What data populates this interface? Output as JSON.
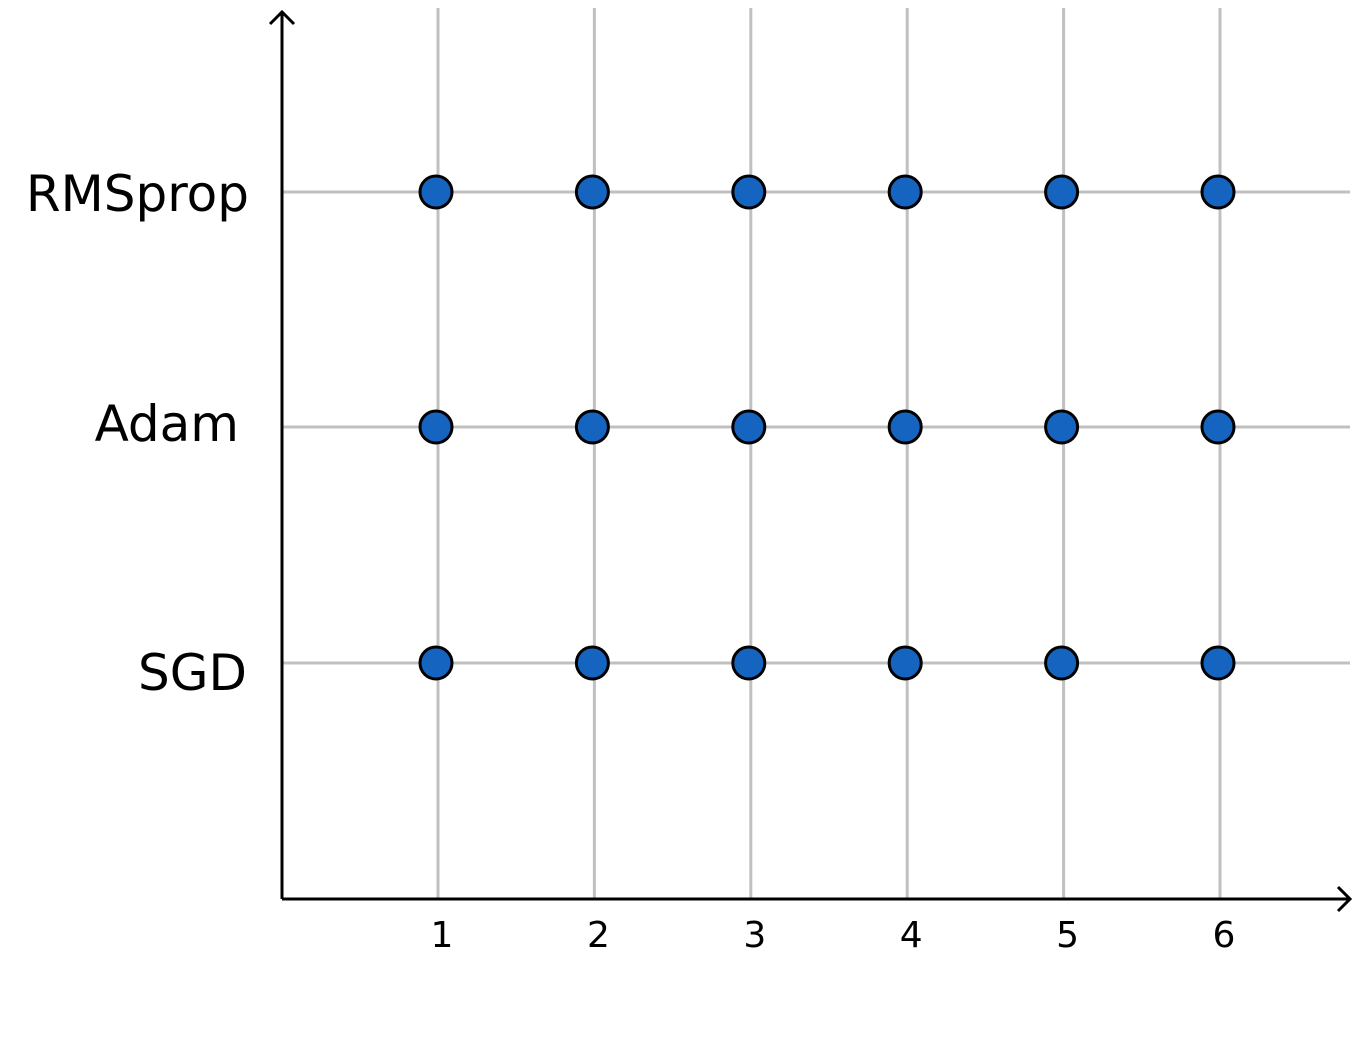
{
  "chart_data": {
    "type": "scatter",
    "title": "",
    "xlabel": "",
    "ylabel": "",
    "x_ticks": [
      "1",
      "2",
      "3",
      "4",
      "5",
      "6"
    ],
    "y_categories": [
      "SGD",
      "Adam",
      "RMSprop"
    ],
    "xlim": [
      0,
      6.75
    ],
    "grid": true,
    "marker_color": "#1565c0",
    "series": [
      {
        "points": [
          {
            "x": 1,
            "y": "SGD"
          },
          {
            "x": 2,
            "y": "SGD"
          },
          {
            "x": 3,
            "y": "SGD"
          },
          {
            "x": 4,
            "y": "SGD"
          },
          {
            "x": 5,
            "y": "SGD"
          },
          {
            "x": 6,
            "y": "SGD"
          },
          {
            "x": 1,
            "y": "Adam"
          },
          {
            "x": 2,
            "y": "Adam"
          },
          {
            "x": 3,
            "y": "Adam"
          },
          {
            "x": 4,
            "y": "Adam"
          },
          {
            "x": 5,
            "y": "Adam"
          },
          {
            "x": 6,
            "y": "Adam"
          },
          {
            "x": 1,
            "y": "RMSprop"
          },
          {
            "x": 2,
            "y": "RMSprop"
          },
          {
            "x": 3,
            "y": "RMSprop"
          },
          {
            "x": 4,
            "y": "RMSprop"
          },
          {
            "x": 5,
            "y": "RMSprop"
          },
          {
            "x": 6,
            "y": "RMSprop"
          }
        ]
      }
    ]
  }
}
